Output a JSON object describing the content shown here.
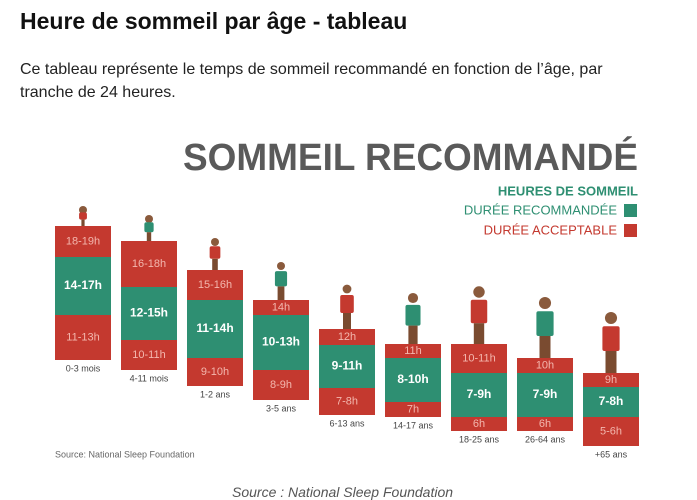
{
  "header": {
    "title": "Heure de sommeil par âge - tableau",
    "description": "Ce tableau représente le temps de sommeil recommandé en fonction de l’âge, par tranche de 24 heures."
  },
  "infographic": {
    "title": "SOMMEIL RECOMMANDÉ",
    "legend": {
      "heading": "HEURES DE SOMMEIL",
      "items": [
        "DURÉE RECOMMANDÉE",
        "DURÉE ACCEPTABLE"
      ]
    },
    "columns": [
      {
        "top": "18-19h",
        "recommended": "14-17h",
        "bottom": "11-13h",
        "age": "0-3 mois"
      },
      {
        "top": "16-18h",
        "recommended": "12-15h",
        "bottom": "10-11h",
        "age": "4-11 mois"
      },
      {
        "top": "15-16h",
        "recommended": "11-14h",
        "bottom": "9-10h",
        "age": "1-2 ans"
      },
      {
        "top": "14h",
        "recommended": "10-13h",
        "bottom": "8-9h",
        "age": "3-5 ans"
      },
      {
        "top": "12h",
        "recommended": "9-11h",
        "bottom": "7-8h",
        "age": "6-13 ans"
      },
      {
        "top": "11h",
        "recommended": "8-10h",
        "bottom": "7h",
        "age": "14-17 ans"
      },
      {
        "top": "10-11h",
        "recommended": "7-9h",
        "bottom": "6h",
        "age": "18-25 ans"
      },
      {
        "top": "10h",
        "recommended": "7-9h",
        "bottom": "6h",
        "age": "26-64 ans"
      },
      {
        "top": "9h",
        "recommended": "7-8h",
        "bottom": "5-6h",
        "age": "+65 ans"
      }
    ],
    "source": "Source: National Sleep Foundation"
  },
  "caption": "Source : National Sleep Foundation"
}
